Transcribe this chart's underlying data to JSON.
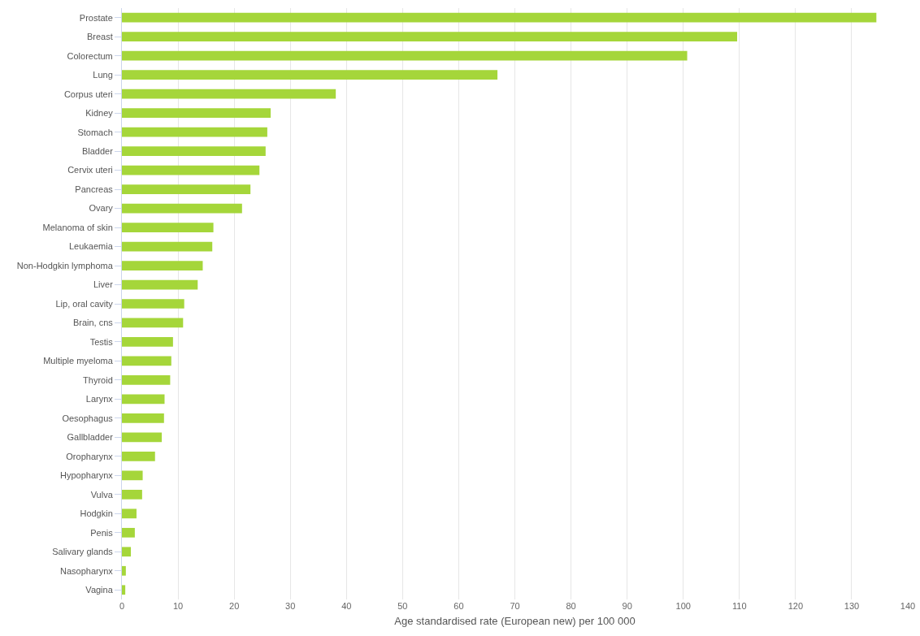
{
  "chart_data": {
    "type": "bar",
    "orientation": "horizontal",
    "xlabel": "Age standardised rate (European new) per 100 000",
    "categories": [
      "Prostate",
      "Breast",
      "Colorectum",
      "Lung",
      "Corpus uteri",
      "Kidney",
      "Stomach",
      "Bladder",
      "Cervix uteri",
      "Pancreas",
      "Ovary",
      "Melanoma of skin",
      "Leukaemia",
      "Non-Hodgkin lymphoma",
      "Liver",
      "Lip, oral cavity",
      "Brain, cns",
      "Testis",
      "Multiple myeloma",
      "Thyroid",
      "Larynx",
      "Oesophagus",
      "Gallbladder",
      "Oropharynx",
      "Hypopharynx",
      "Vulva",
      "Hodgkin",
      "Penis",
      "Salivary glands",
      "Nasopharynx",
      "Vagina"
    ],
    "values": [
      134.4,
      109.6,
      100.7,
      66.9,
      38.1,
      26.5,
      25.9,
      25.6,
      24.5,
      22.9,
      21.4,
      16.3,
      16.1,
      14.4,
      13.5,
      11.1,
      10.9,
      9.1,
      8.8,
      8.6,
      7.6,
      7.5,
      7.1,
      5.9,
      3.7,
      3.6,
      2.6,
      2.3,
      1.6,
      0.7,
      0.6
    ],
    "color": "#a5d63a",
    "xlim": [
      0,
      140
    ],
    "xticks": [
      0,
      10,
      20,
      30,
      40,
      50,
      60,
      70,
      80,
      90,
      100,
      110,
      120,
      130,
      140
    ],
    "grid": "x"
  }
}
